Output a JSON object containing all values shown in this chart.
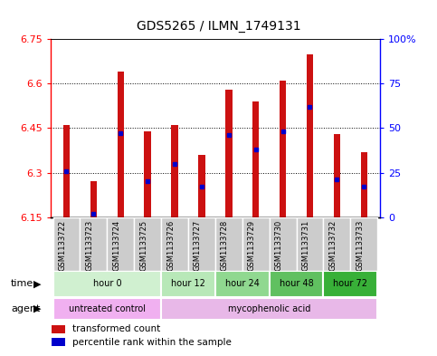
{
  "title": "GDS5265 / ILMN_1749131",
  "samples": [
    "GSM1133722",
    "GSM1133723",
    "GSM1133724",
    "GSM1133725",
    "GSM1133726",
    "GSM1133727",
    "GSM1133728",
    "GSM1133729",
    "GSM1133730",
    "GSM1133731",
    "GSM1133732",
    "GSM1133733"
  ],
  "transformed_counts": [
    6.46,
    6.27,
    6.64,
    6.44,
    6.46,
    6.36,
    6.58,
    6.54,
    6.61,
    6.7,
    6.43,
    6.37
  ],
  "percentile_ranks": [
    26,
    2,
    47,
    20,
    30,
    17,
    46,
    38,
    48,
    62,
    21,
    17
  ],
  "ymin": 6.15,
  "ymax": 6.75,
  "yticks": [
    6.15,
    6.3,
    6.45,
    6.6,
    6.75
  ],
  "ytick_labels_left": [
    "6.15",
    "6.3",
    "6.45",
    "6.6",
    "6.75"
  ],
  "right_yticks": [
    0,
    25,
    50,
    75,
    100
  ],
  "right_ytick_labels": [
    "0",
    "25",
    "50",
    "75",
    "100%"
  ],
  "time_groups": [
    {
      "label": "hour 0",
      "start": 0,
      "end": 3,
      "color": "#d0f0d0"
    },
    {
      "label": "hour 12",
      "start": 4,
      "end": 5,
      "color": "#b8e8b8"
    },
    {
      "label": "hour 24",
      "start": 6,
      "end": 7,
      "color": "#90d890"
    },
    {
      "label": "hour 48",
      "start": 8,
      "end": 9,
      "color": "#60c060"
    },
    {
      "label": "hour 72",
      "start": 10,
      "end": 11,
      "color": "#38b038"
    }
  ],
  "agent_groups": [
    {
      "label": "untreated control",
      "start": 0,
      "end": 3,
      "color": "#f0b0f0"
    },
    {
      "label": "mycophenolic acid",
      "start": 4,
      "end": 11,
      "color": "#e8b8e8"
    }
  ],
  "bar_color": "#cc1111",
  "dot_color": "#0000cc",
  "background_color": "#ffffff",
  "legend_red_label": "transformed count",
  "legend_blue_label": "percentile rank within the sample",
  "sample_bg_color": "#cccccc"
}
